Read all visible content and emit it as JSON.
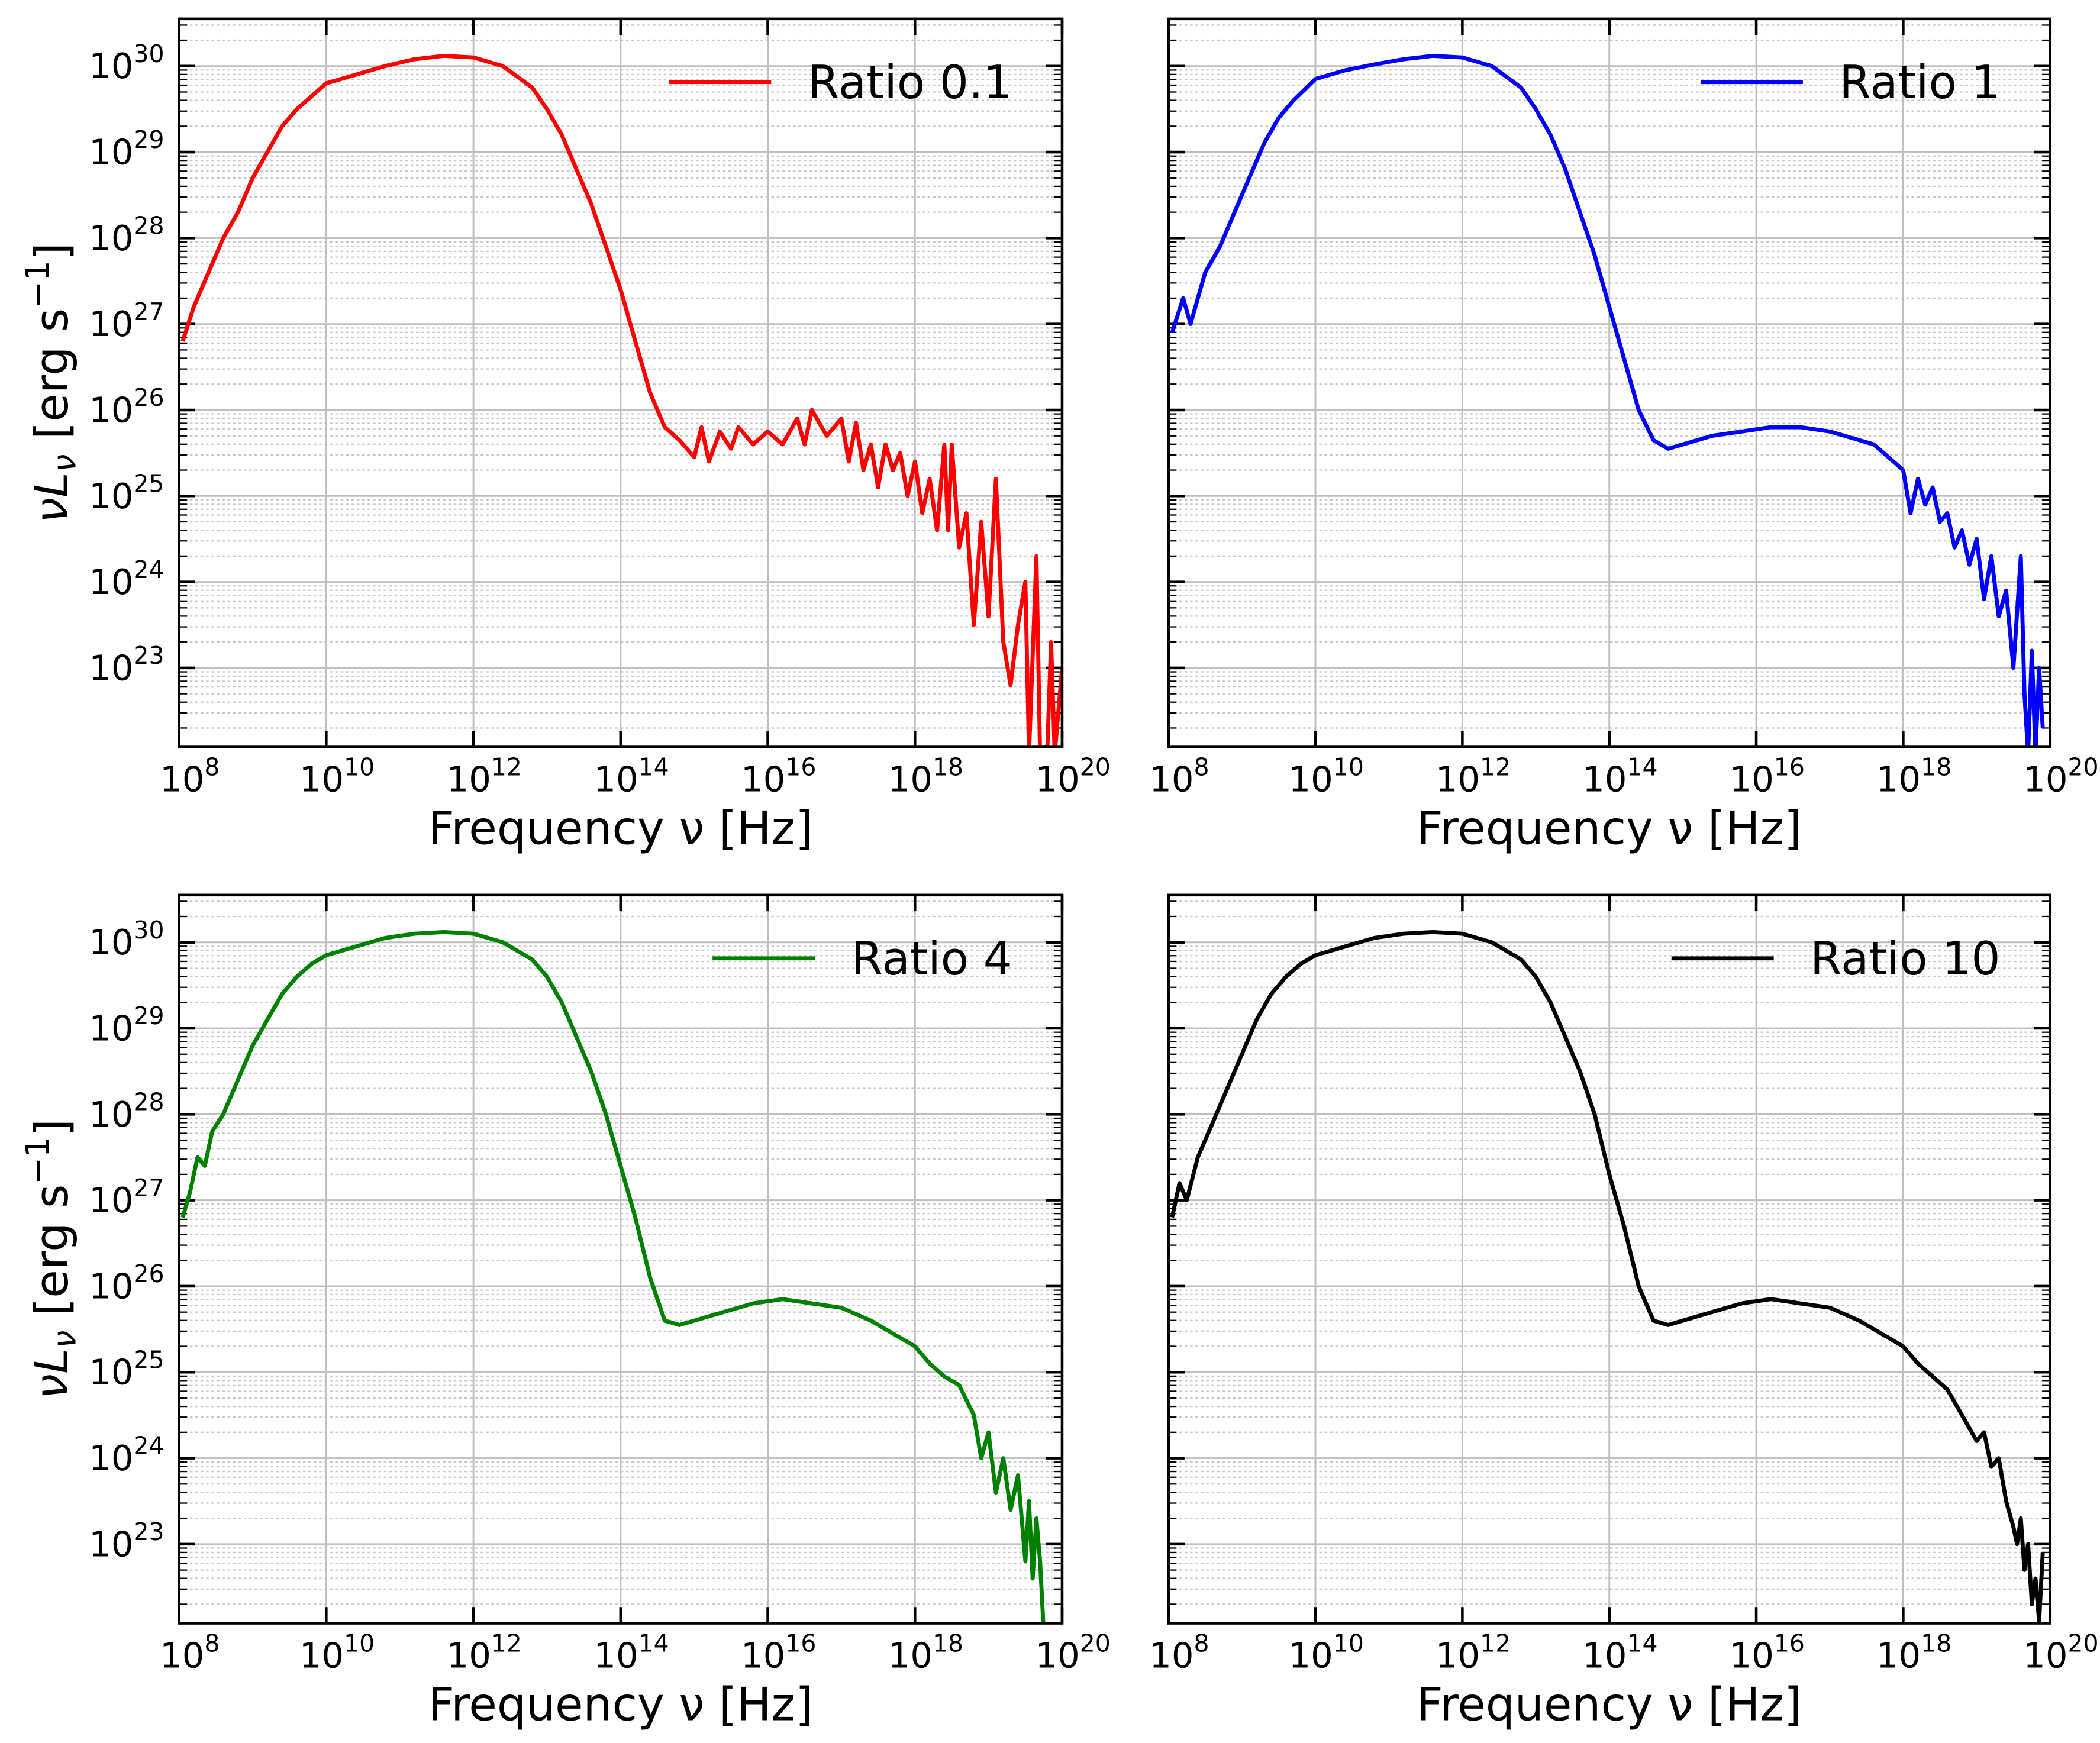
{
  "figure": {
    "tick_base": "10",
    "x_tick_exponents": [
      "8",
      "10",
      "12",
      "14",
      "16",
      "18",
      "20"
    ],
    "y_tick_exponents": [
      "23",
      "24",
      "25",
      "26",
      "27",
      "28",
      "29",
      "30"
    ],
    "xlabel": "Frequency ν [Hz]",
    "ylabel_parts": {
      "nu": "ν",
      "L": "L",
      "sub": "ν",
      "unit": " [erg s",
      "sup": "−1",
      "close": "]"
    }
  },
  "chart_data": [
    {
      "type": "line",
      "title": "",
      "xscale": "log",
      "yscale": "log",
      "xlabel": "Frequency ν [Hz]",
      "ylabel": "νLν [erg s−1]",
      "xlim_log10": [
        8,
        20
      ],
      "ylim_log10": [
        22.08,
        30.55
      ],
      "grid": true,
      "legend_position": "top-right",
      "series": [
        {
          "name": "Ratio 0.1",
          "color": "#ff0000",
          "x_log10": [
            8.05,
            8.2,
            8.4,
            8.6,
            8.8,
            9.0,
            9.2,
            9.4,
            9.6,
            9.8,
            10.0,
            10.4,
            10.8,
            11.2,
            11.6,
            12.0,
            12.4,
            12.8,
            13.0,
            13.2,
            13.4,
            13.6,
            13.8,
            14.0,
            14.2,
            14.4,
            14.6,
            14.8,
            15.0,
            15.1,
            15.2,
            15.35,
            15.5,
            15.6,
            15.8,
            16.0,
            16.2,
            16.4,
            16.5,
            16.6,
            16.8,
            17.0,
            17.1,
            17.2,
            17.3,
            17.4,
            17.5,
            17.6,
            17.7,
            17.8,
            17.9,
            18.0,
            18.1,
            18.2,
            18.3,
            18.4,
            18.45,
            18.5,
            18.6,
            18.7,
            18.8,
            18.9,
            19.0,
            19.1,
            19.2,
            19.3,
            19.4,
            19.5,
            19.55,
            19.65,
            19.7,
            19.8,
            19.85,
            19.9,
            20.0
          ],
          "y_log10": [
            26.8,
            27.2,
            27.6,
            28.0,
            28.3,
            28.7,
            29.0,
            29.3,
            29.5,
            29.65,
            29.8,
            29.9,
            30.0,
            30.08,
            30.12,
            30.1,
            30.0,
            29.75,
            29.5,
            29.2,
            28.8,
            28.4,
            27.9,
            27.4,
            26.8,
            26.2,
            25.8,
            25.65,
            25.45,
            25.8,
            25.4,
            25.75,
            25.55,
            25.8,
            25.6,
            25.75,
            25.6,
            25.9,
            25.6,
            26.0,
            25.7,
            25.9,
            25.4,
            25.85,
            25.3,
            25.6,
            25.1,
            25.6,
            25.3,
            25.5,
            25.0,
            25.4,
            24.8,
            25.2,
            24.6,
            25.6,
            24.6,
            25.6,
            24.4,
            24.8,
            23.5,
            24.7,
            23.6,
            25.2,
            23.3,
            22.8,
            23.5,
            24.0,
            22.0,
            24.3,
            22.0,
            22.1,
            23.3,
            22.0,
            23.0
          ]
        }
      ]
    },
    {
      "type": "line",
      "title": "",
      "xscale": "log",
      "yscale": "log",
      "xlabel": "Frequency ν [Hz]",
      "ylabel": "",
      "xlim_log10": [
        8,
        20
      ],
      "ylim_log10": [
        22.08,
        30.55
      ],
      "grid": true,
      "legend_position": "top-right",
      "series": [
        {
          "name": "Ratio 1",
          "color": "#0000ff",
          "x_log10": [
            8.05,
            8.2,
            8.3,
            8.5,
            8.7,
            8.9,
            9.1,
            9.3,
            9.5,
            9.7,
            10.0,
            10.4,
            10.8,
            11.2,
            11.6,
            12.0,
            12.4,
            12.8,
            13.0,
            13.2,
            13.4,
            13.6,
            13.8,
            14.0,
            14.2,
            14.4,
            14.6,
            14.8,
            15.0,
            15.4,
            15.8,
            16.2,
            16.6,
            17.0,
            17.4,
            17.6,
            17.8,
            18.0,
            18.1,
            18.2,
            18.3,
            18.4,
            18.5,
            18.6,
            18.7,
            18.8,
            18.9,
            19.0,
            19.1,
            19.2,
            19.3,
            19.4,
            19.5,
            19.6,
            19.65,
            19.7,
            19.75,
            19.8,
            19.85,
            19.9
          ],
          "y_log10": [
            26.9,
            27.3,
            27.0,
            27.6,
            27.9,
            28.3,
            28.7,
            29.1,
            29.4,
            29.6,
            29.85,
            29.95,
            30.02,
            30.08,
            30.12,
            30.1,
            30.0,
            29.75,
            29.5,
            29.2,
            28.8,
            28.3,
            27.8,
            27.2,
            26.6,
            26.0,
            25.65,
            25.55,
            25.6,
            25.7,
            25.75,
            25.8,
            25.8,
            25.75,
            25.65,
            25.6,
            25.45,
            25.3,
            24.8,
            25.2,
            24.9,
            25.1,
            24.7,
            24.8,
            24.4,
            24.6,
            24.2,
            24.5,
            23.8,
            24.3,
            23.6,
            23.9,
            23.0,
            24.3,
            22.7,
            22.0,
            23.2,
            22.0,
            23.0,
            22.3
          ]
        }
      ]
    },
    {
      "type": "line",
      "title": "",
      "xscale": "log",
      "yscale": "log",
      "xlabel": "Frequency ν [Hz]",
      "ylabel": "νLν [erg s−1]",
      "xlim_log10": [
        8,
        20
      ],
      "ylim_log10": [
        22.08,
        30.55
      ],
      "grid": true,
      "legend_position": "top-right",
      "series": [
        {
          "name": "Ratio 4",
          "color": "#008000",
          "x_log10": [
            8.05,
            8.15,
            8.25,
            8.35,
            8.45,
            8.6,
            8.8,
            9.0,
            9.2,
            9.4,
            9.6,
            9.8,
            10.0,
            10.4,
            10.8,
            11.2,
            11.6,
            12.0,
            12.4,
            12.8,
            13.0,
            13.2,
            13.4,
            13.6,
            13.8,
            14.0,
            14.2,
            14.4,
            14.6,
            14.8,
            15.0,
            15.4,
            15.8,
            16.2,
            16.6,
            17.0,
            17.4,
            17.8,
            18.0,
            18.2,
            18.4,
            18.6,
            18.8,
            18.9,
            19.0,
            19.1,
            19.2,
            19.3,
            19.4,
            19.5,
            19.55,
            19.6,
            19.65,
            19.7,
            19.75
          ],
          "y_log10": [
            26.8,
            27.1,
            27.5,
            27.4,
            27.8,
            28.0,
            28.4,
            28.8,
            29.1,
            29.4,
            29.6,
            29.75,
            29.85,
            29.95,
            30.05,
            30.1,
            30.12,
            30.1,
            30.0,
            29.8,
            29.6,
            29.3,
            28.9,
            28.5,
            28.0,
            27.4,
            26.8,
            26.1,
            25.6,
            25.55,
            25.6,
            25.7,
            25.8,
            25.85,
            25.8,
            25.75,
            25.6,
            25.4,
            25.3,
            25.1,
            24.95,
            24.85,
            24.5,
            24.0,
            24.3,
            23.6,
            24.0,
            23.4,
            23.8,
            22.8,
            23.5,
            22.6,
            23.3,
            22.8,
            22.0
          ]
        }
      ]
    },
    {
      "type": "line",
      "title": "",
      "xscale": "log",
      "yscale": "log",
      "xlabel": "Frequency ν [Hz]",
      "ylabel": "",
      "xlim_log10": [
        8,
        20
      ],
      "ylim_log10": [
        22.08,
        30.55
      ],
      "grid": true,
      "legend_position": "top-right",
      "series": [
        {
          "name": "Ratio 10",
          "color": "#000000",
          "x_log10": [
            8.05,
            8.15,
            8.25,
            8.4,
            8.6,
            8.8,
            9.0,
            9.2,
            9.4,
            9.6,
            9.8,
            10.0,
            10.4,
            10.8,
            11.2,
            11.6,
            12.0,
            12.4,
            12.8,
            13.0,
            13.2,
            13.4,
            13.6,
            13.8,
            14.0,
            14.2,
            14.4,
            14.6,
            14.8,
            15.0,
            15.4,
            15.8,
            16.2,
            16.6,
            17.0,
            17.4,
            17.8,
            18.0,
            18.2,
            18.4,
            18.6,
            18.8,
            19.0,
            19.1,
            19.2,
            19.3,
            19.4,
            19.5,
            19.55,
            19.6,
            19.65,
            19.7,
            19.75,
            19.8,
            19.85,
            19.9
          ],
          "y_log10": [
            26.8,
            27.2,
            27.0,
            27.5,
            27.9,
            28.3,
            28.7,
            29.1,
            29.4,
            29.6,
            29.75,
            29.85,
            29.95,
            30.05,
            30.1,
            30.12,
            30.1,
            30.0,
            29.8,
            29.6,
            29.3,
            28.9,
            28.5,
            28.0,
            27.3,
            26.7,
            26.0,
            25.6,
            25.55,
            25.6,
            25.7,
            25.8,
            25.85,
            25.8,
            25.75,
            25.6,
            25.4,
            25.3,
            25.1,
            24.95,
            24.8,
            24.5,
            24.2,
            24.3,
            23.9,
            24.0,
            23.5,
            23.2,
            23.0,
            23.3,
            22.7,
            23.0,
            22.3,
            22.6,
            22.1,
            22.9
          ]
        }
      ]
    }
  ]
}
